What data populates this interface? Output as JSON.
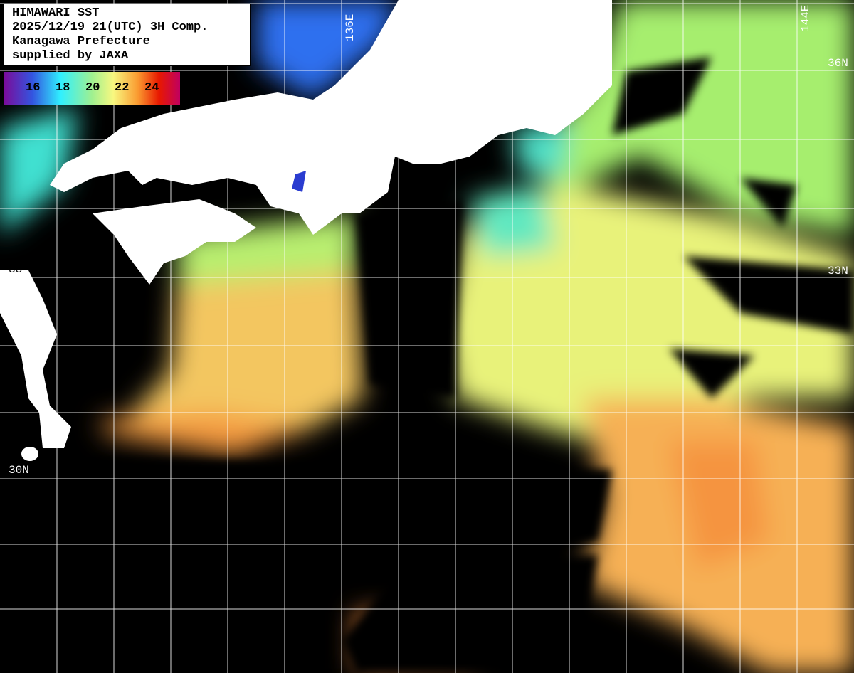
{
  "title_box": {
    "line1": "HIMAWARI SST",
    "line2": "2025/12/19 21(UTC) 3H Comp.",
    "line3": "Kanagawa Prefecture",
    "line4": "supplied by JAXA"
  },
  "legend": {
    "labels": [
      "16",
      "18",
      "20",
      "22",
      "24"
    ],
    "colors": [
      "#7a0c9a",
      "#3355e0",
      "#30f0ff",
      "#a0f090",
      "#f8f880",
      "#fa9a30",
      "#e81800",
      "#c00060"
    ]
  },
  "grid_labels": {
    "lon_136": "136E",
    "lon_144": "144E",
    "lat_36": "36N",
    "lat_33_right": "33N",
    "lat_33_left": "33",
    "lat_30": "30N"
  },
  "colors": {
    "land": "#ffffff",
    "no_data": "#000000",
    "grid": "#ffffff"
  }
}
